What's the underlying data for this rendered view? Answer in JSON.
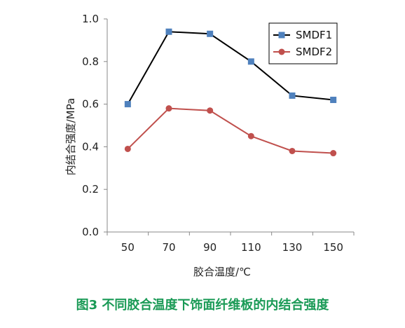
{
  "chart_data": {
    "type": "line",
    "x": [
      50,
      70,
      90,
      110,
      130,
      150
    ],
    "series": [
      {
        "name": "SMDF1",
        "values": [
          0.6,
          0.94,
          0.93,
          0.8,
          0.64,
          0.62
        ],
        "color": "#000000",
        "marker_color": "#4f81bd",
        "marker": "square"
      },
      {
        "name": "SMDF2",
        "values": [
          0.39,
          0.58,
          0.57,
          0.45,
          0.38,
          0.37
        ],
        "color": "#c0504d",
        "marker_color": "#c0504d",
        "marker": "circle"
      }
    ],
    "xlabel": "胶合温度/℃",
    "ylabel": "内结合强度/MPa",
    "ylim": [
      0,
      1.0
    ],
    "yticks": [
      "0.0",
      "0.2",
      "0.4",
      "0.6",
      "0.8",
      "1.0"
    ],
    "xticks": [
      "50",
      "70",
      "90",
      "110",
      "130",
      "150"
    ],
    "legend_position": "top-right",
    "grid": false
  },
  "caption": "图3 不同胶合温度下饰面纤维板的内结合强度"
}
